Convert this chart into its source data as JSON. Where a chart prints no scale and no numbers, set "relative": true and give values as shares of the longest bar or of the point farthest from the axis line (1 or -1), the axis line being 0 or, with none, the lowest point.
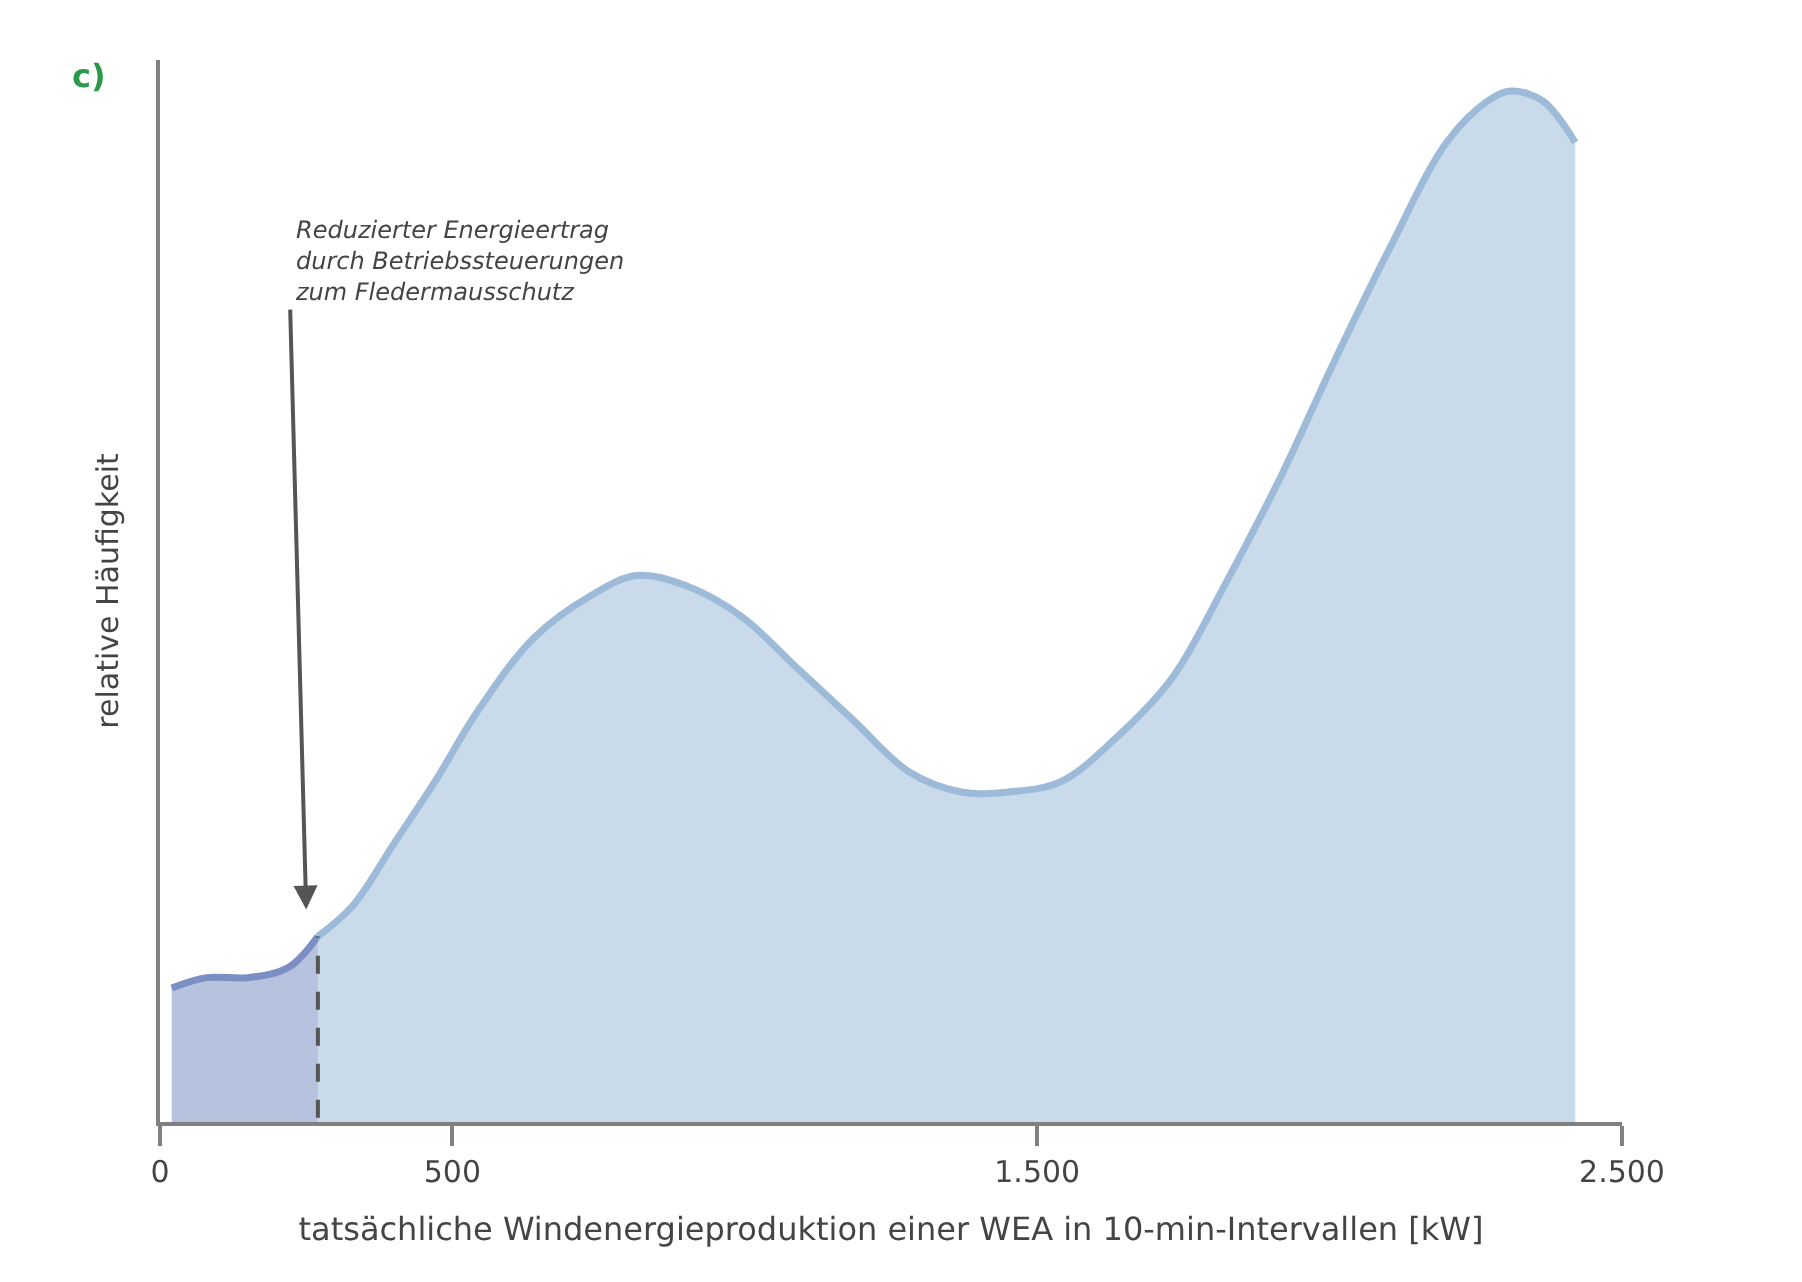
{
  "chart_data": {
    "type": "area",
    "title": "c)",
    "xlabel": "tatsächliche Windenergieproduktion einer WEA in 10-min-Intervallen [kW]",
    "ylabel": "relative Häufigkeit",
    "relative": true,
    "xlim": [
      0,
      2500
    ],
    "xticks": [
      0,
      500,
      {
        "value": 1500,
        "label": "1.500"
      },
      {
        "value": 2500,
        "label": "2.500"
      }
    ],
    "tick_labels": "x",
    "series": [
      {
        "color": "#7b8fc4",
        "x": [
          20,
          80,
          150,
          220,
          270
        ],
        "values": [
          0.13,
          0.14,
          0.14,
          0.15,
          0.18
        ]
      },
      {
        "color": "#9dbbd9",
        "x": [
          270,
          330,
          400,
          470,
          545,
          640,
          735,
          815,
          900,
          995,
          1090,
          1185,
          1280,
          1370,
          1450,
          1540,
          1630,
          1730,
          1820,
          1920,
          2010,
          2105,
          2200,
          2270,
          2310,
          2365,
          2420
        ],
        "values": [
          0.18,
          0.21,
          0.27,
          0.33,
          0.4,
          0.47,
          0.51,
          0.53,
          0.52,
          0.49,
          0.44,
          0.39,
          0.34,
          0.32,
          0.32,
          0.33,
          0.37,
          0.43,
          0.52,
          0.63,
          0.74,
          0.85,
          0.95,
          0.99,
          1.0,
          0.99,
          0.95
        ]
      }
    ],
    "ref_lines": [
      {
        "axis": "x",
        "value": 270,
        "color": "#555555",
        "line_style": "dashed"
      }
    ],
    "annotations": [
      "Reduzierter Energieertrag\ndurch Betriebssteuerungen\nzum Fledermausschutz"
    ]
  }
}
